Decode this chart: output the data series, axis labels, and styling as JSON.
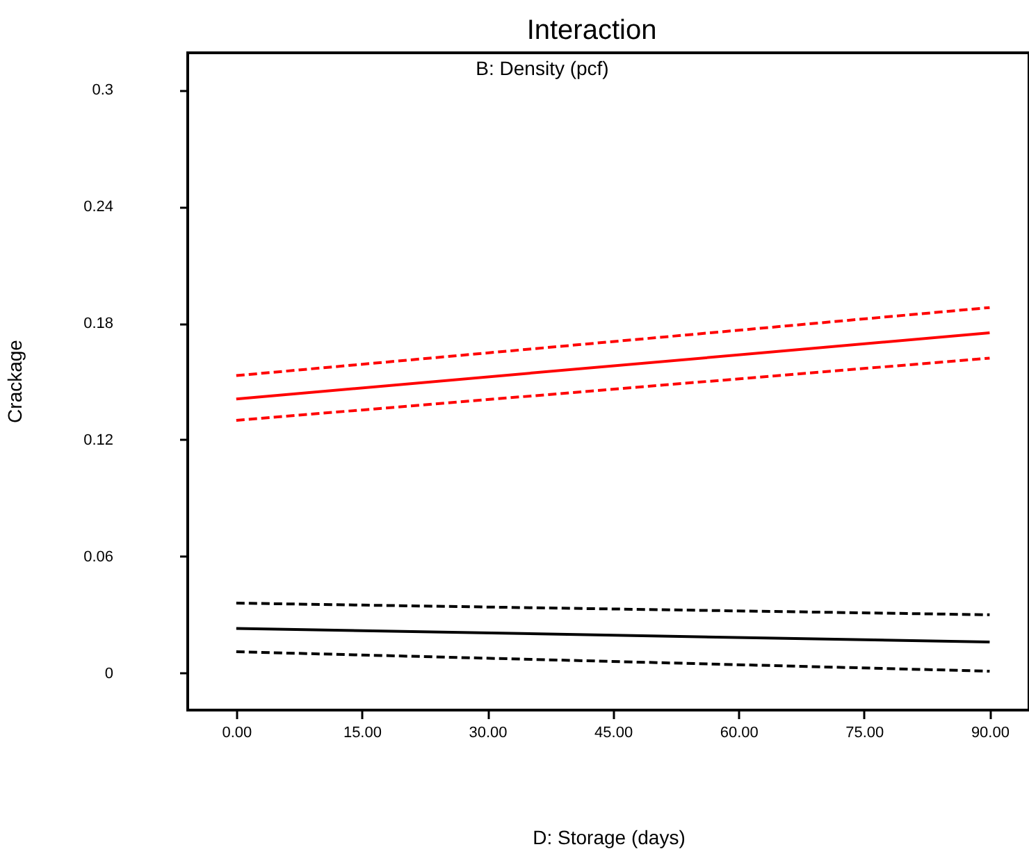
{
  "chart_data": {
    "type": "line",
    "title": "Interaction",
    "xlabel": "D: Storage (days)",
    "ylabel": "Crackage",
    "annotations": [
      "B: Density (pcf)"
    ],
    "x": [
      0,
      90
    ],
    "series": [
      {
        "color": "#ff0000",
        "values": [
          0.141,
          0.175
        ]
      },
      {
        "color": "#ff0000",
        "values": [
          0.13,
          0.162
        ],
        "line_style": "dashed"
      },
      {
        "color": "#ff0000",
        "values": [
          0.153,
          0.188
        ],
        "line_style": "dashed"
      },
      {
        "color": "#000000",
        "values": [
          0.023,
          0.016
        ]
      },
      {
        "color": "#000000",
        "values": [
          0.011,
          0.001
        ],
        "line_style": "dashed"
      },
      {
        "color": "#000000",
        "values": [
          0.036,
          0.03
        ],
        "line_style": "dashed"
      }
    ],
    "xlim": [
      -5.8,
      94.7
    ],
    "ylim": [
      -0.019,
      0.319
    ],
    "xticks": [
      {
        "value": 0,
        "label": "0.00"
      },
      {
        "value": 15,
        "label": "15.00"
      },
      {
        "value": 30,
        "label": "30.00"
      },
      {
        "value": 45,
        "label": "45.00"
      },
      {
        "value": 60,
        "label": "60.00"
      },
      {
        "value": 75,
        "label": "75.00"
      },
      {
        "value": 90,
        "label": "90.00"
      }
    ],
    "yticks": [
      0,
      0.06,
      0.12,
      0.18,
      0.24,
      0.3
    ],
    "line_style": "solid"
  }
}
